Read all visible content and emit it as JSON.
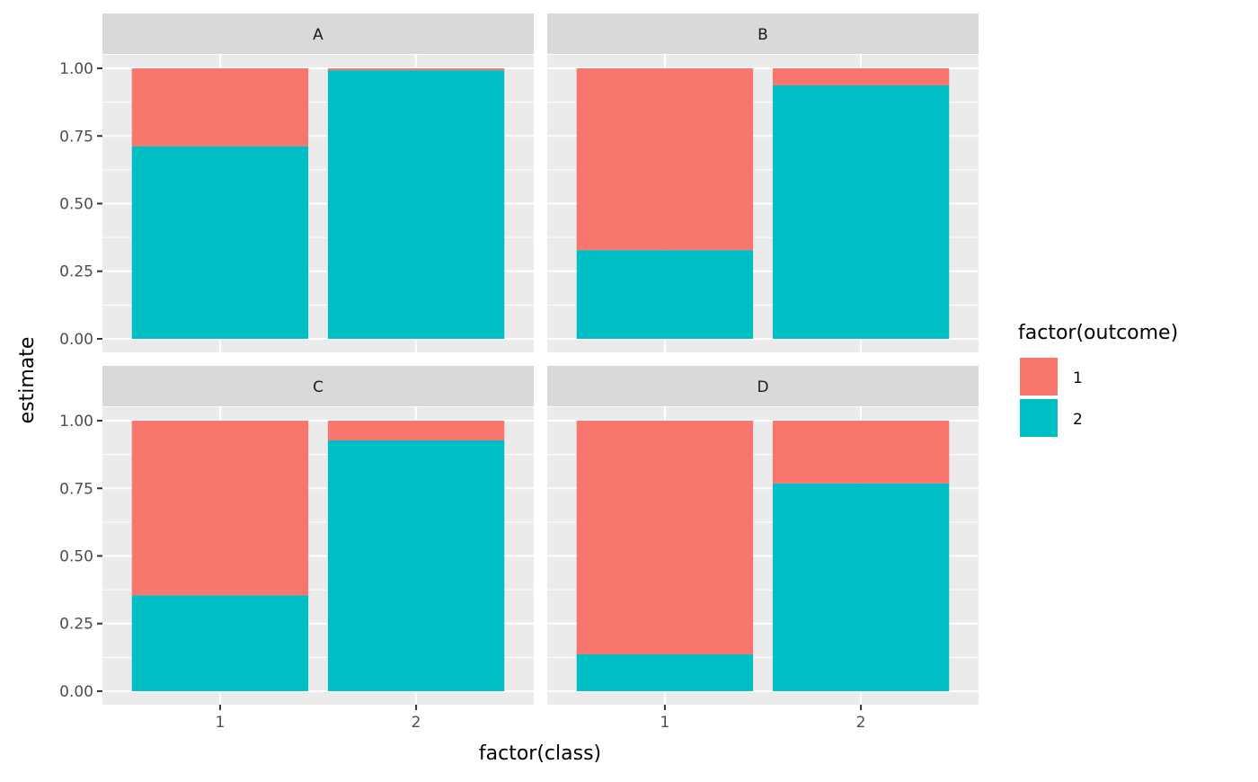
{
  "chart_data": {
    "type": "bar",
    "stacked": true,
    "facet_by": "panel",
    "panels": [
      "A",
      "B",
      "C",
      "D"
    ],
    "categories": [
      "1",
      "2"
    ],
    "xlabel": "factor(class)",
    "ylabel": "estimate",
    "ylim": [
      0,
      1
    ],
    "yticks": [
      "0.00",
      "0.25",
      "0.50",
      "0.75",
      "1.00"
    ],
    "legend": {
      "title": "factor(outcome)",
      "placement": "right",
      "entries": [
        "1",
        "2"
      ]
    },
    "colors": {
      "1": "#F8766D",
      "2": "#00BFC4",
      "panel_bg": "#EBEBEB",
      "strip_bg": "#D9D9D9",
      "grid": "#FFFFFF"
    },
    "series": [
      {
        "name": "1",
        "values": {
          "A": [
            0.288,
            0.007
          ],
          "B": [
            0.672,
            0.063
          ],
          "C": [
            0.646,
            0.073
          ],
          "D": [
            0.864,
            0.232
          ]
        }
      },
      {
        "name": "2",
        "values": {
          "A": [
            0.712,
            0.993
          ],
          "B": [
            0.328,
            0.937
          ],
          "C": [
            0.354,
            0.927
          ],
          "D": [
            0.136,
            0.768
          ]
        }
      }
    ]
  }
}
